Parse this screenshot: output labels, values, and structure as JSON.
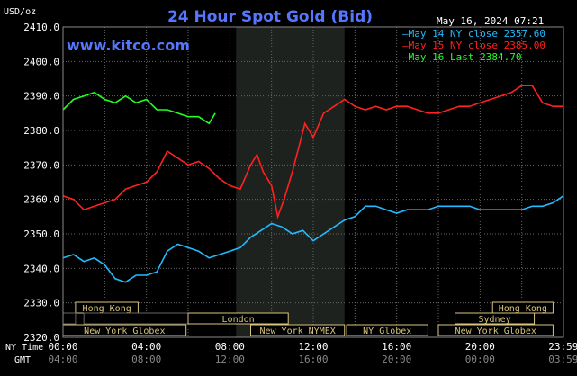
{
  "chart_data": {
    "type": "line",
    "title": "24 Hour Spot Gold (Bid)",
    "ylabel": "USD/oz",
    "source": "www.kitco.com",
    "date": "May 16, 2024 07:21",
    "ylim": [
      2320,
      2410
    ],
    "yticks": [
      "2410.0",
      "2400.0",
      "2390.0",
      "2380.0",
      "2370.0",
      "2360.0",
      "2350.0",
      "2340.0",
      "2330.0",
      "2320.0"
    ],
    "xlim": [
      0,
      24
    ],
    "xticks_ny": [
      "00:00",
      "04:00",
      "08:00",
      "12:00",
      "16:00",
      "20:00",
      "23:59"
    ],
    "xticks_gmt": [
      "04:00",
      "08:00",
      "12:00",
      "16:00",
      "20:00",
      "00:00",
      "03:59"
    ],
    "x_row_labels": {
      "ny": "NY Time",
      "gmt": "GMT"
    },
    "grid": true,
    "legend_position": "top-right",
    "shaded_hours": [
      8.3,
      13.5
    ],
    "sessions": [
      {
        "label": "Hong Kong",
        "start": 0.6,
        "end": 3.6,
        "row": 0,
        "shown": true
      },
      {
        "label": "Hong Kong",
        "start": 20.6,
        "end": 23.5,
        "row": 0,
        "shown": true
      },
      {
        "label": "",
        "start": 0,
        "end": 0.6,
        "row": 1,
        "shown": false
      },
      {
        "label": "",
        "start": 1.0,
        "end": 6.0,
        "row": 1,
        "shown": false
      },
      {
        "label": "London",
        "start": 6.0,
        "end": 10.8,
        "row": 1,
        "shown": true
      },
      {
        "label": "Sydney",
        "start": 18.8,
        "end": 22.6,
        "row": 1,
        "shown": true
      },
      {
        "label": "New York Globex",
        "start": 0.0,
        "end": 5.9,
        "row": 2,
        "shown": true
      },
      {
        "label": "New York NYMEX",
        "start": 9.0,
        "end": 13.5,
        "row": 2,
        "shown": true
      },
      {
        "label": "NY Globex",
        "start": 13.6,
        "end": 17.5,
        "row": 2,
        "shown": true
      },
      {
        "label": "New York Globex",
        "start": 18.0,
        "end": 23.5,
        "row": 2,
        "shown": true
      }
    ],
    "series": [
      {
        "name": "May 14 NY close 2357.60",
        "color": "#22bbff",
        "x": [
          0,
          0.5,
          1,
          1.5,
          2,
          2.5,
          3,
          3.5,
          4,
          4.5,
          5,
          5.5,
          6,
          6.5,
          7,
          7.5,
          8,
          8.5,
          9,
          9.5,
          10,
          10.5,
          11,
          11.5,
          12,
          12.5,
          13,
          13.5,
          14,
          14.5,
          15,
          15.5,
          16,
          16.5,
          17,
          17.5,
          18,
          18.5,
          19,
          19.5,
          20,
          20.5,
          21,
          21.5,
          22,
          22.5,
          23,
          23.5,
          23.99
        ],
        "values": [
          2343,
          2344,
          2342,
          2343,
          2341,
          2337,
          2336,
          2338,
          2338,
          2339,
          2345,
          2347,
          2346,
          2345,
          2343,
          2344,
          2345,
          2346,
          2349,
          2351,
          2353,
          2352,
          2350,
          2351,
          2348,
          2350,
          2352,
          2354,
          2355,
          2358,
          2358,
          2357,
          2356,
          2357,
          2357,
          2357,
          2358,
          2358,
          2358,
          2358,
          2357,
          2357,
          2357,
          2357,
          2357,
          2358,
          2358,
          2359,
          2361
        ]
      },
      {
        "name": "May 15 NY close 2385.00",
        "color": "#ff2020",
        "x": [
          0,
          0.5,
          1,
          1.5,
          2,
          2.5,
          3,
          3.5,
          4,
          4.5,
          5,
          5.5,
          6,
          6.5,
          7,
          7.5,
          8,
          8.5,
          9,
          9.3,
          9.6,
          10,
          10.3,
          10.6,
          11,
          11.3,
          11.6,
          12,
          12.5,
          13,
          13.5,
          14,
          14.5,
          15,
          15.5,
          16,
          16.5,
          17,
          17.5,
          18,
          18.5,
          19,
          19.5,
          20,
          20.5,
          21,
          21.5,
          22,
          22.5,
          23,
          23.5,
          23.99
        ],
        "values": [
          2361,
          2360,
          2357,
          2358,
          2359,
          2360,
          2363,
          2364,
          2365,
          2368,
          2374,
          2372,
          2370,
          2371,
          2369,
          2366,
          2364,
          2363,
          2370,
          2373,
          2368,
          2364,
          2355,
          2360,
          2368,
          2375,
          2382,
          2378,
          2385,
          2387,
          2389,
          2387,
          2386,
          2387,
          2386,
          2387,
          2387,
          2386,
          2385,
          2385,
          2386,
          2387,
          2387,
          2388,
          2389,
          2390,
          2391,
          2393,
          2393,
          2388,
          2387,
          2387
        ]
      },
      {
        "name": "May 16 Last 2384.70",
        "color": "#22ff22",
        "x": [
          0,
          0.5,
          1,
          1.5,
          2,
          2.5,
          3,
          3.5,
          4,
          4.5,
          5,
          5.5,
          6,
          6.5,
          7,
          7.3
        ],
        "values": [
          2386,
          2389,
          2390,
          2391,
          2389,
          2388,
          2390,
          2388,
          2389,
          2386,
          2386,
          2385,
          2384,
          2384,
          2382,
          2385
        ]
      }
    ]
  }
}
